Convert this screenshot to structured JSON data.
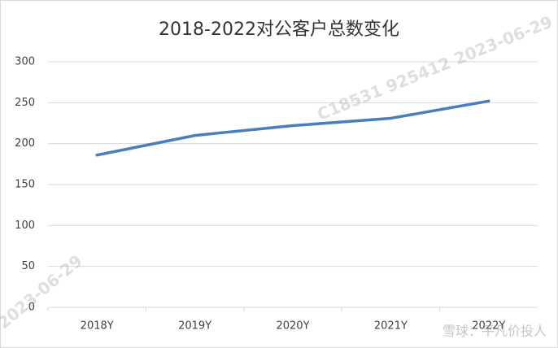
{
  "chart_data": {
    "type": "line",
    "title": "2018-2022对公客户总数变化",
    "categories": [
      "2018Y",
      "2019Y",
      "2020Y",
      "2021Y",
      "2022Y"
    ],
    "series": [
      {
        "name": "对公客户总数",
        "color": "#4a7ebb",
        "values": [
          186,
          210,
          222,
          231,
          252
        ]
      }
    ],
    "ylim": [
      0,
      300
    ],
    "yticks": [
      0,
      50,
      100,
      150,
      200,
      250,
      300
    ],
    "grid": true,
    "annotations": [
      "C18531 925412 2023-06-29",
      "2023-06-29",
      "雪球：平凡价投人"
    ]
  }
}
